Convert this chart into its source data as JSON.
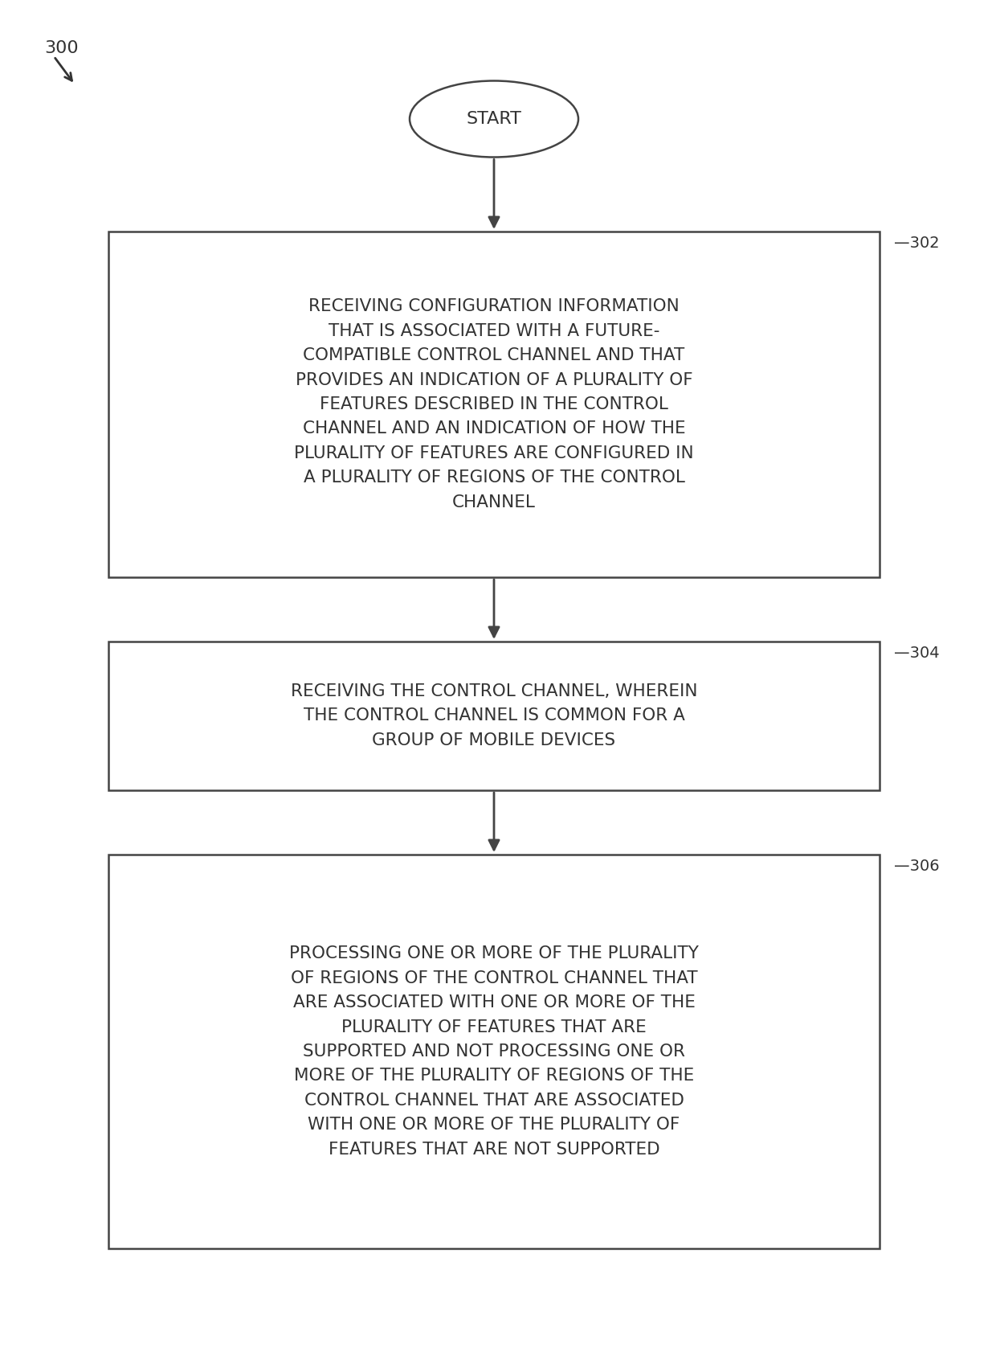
{
  "bg_color": "#ffffff",
  "title_label": "300",
  "start_label": "START",
  "box302_label": "RECEIVING CONFIGURATION INFORMATION\nTHAT IS ASSOCIATED WITH A FUTURE-\nCOMPATIBLE CONTROL CHANNEL AND THAT\nPROVIDES AN INDICATION OF A PLURALITY OF\nFEATURES DESCRIBED IN THE CONTROL\nCHANNEL AND AN INDICATION OF HOW THE\nPLURALITY OF FEATURES ARE CONFIGURED IN\nA PLURALITY OF REGIONS OF THE CONTROL\nCHANNEL",
  "box302_ref": "302",
  "box304_label": "RECEIVING THE CONTROL CHANNEL, WHEREIN\nTHE CONTROL CHANNEL IS COMMON FOR A\nGROUP OF MOBILE DEVICES",
  "box304_ref": "304",
  "box306_label": "PROCESSING ONE OR MORE OF THE PLURALITY\nOF REGIONS OF THE CONTROL CHANNEL THAT\nARE ASSOCIATED WITH ONE OR MORE OF THE\nPLURALITY OF FEATURES THAT ARE\nSUPPORTED AND NOT PROCESSING ONE OR\nMORE OF THE PLURALITY OF REGIONS OF THE\nCONTROL CHANNEL THAT ARE ASSOCIATED\nWITH ONE OR MORE OF THE PLURALITY OF\nFEATURES THAT ARE NOT SUPPORTED",
  "box306_ref": "306",
  "text_color": "#333333",
  "box_edge_color": "#444444",
  "box_fill_color": "#ffffff",
  "arrow_color": "#444444",
  "font_size": 15.5,
  "ref_font_size": 14,
  "label300_fontsize": 16
}
